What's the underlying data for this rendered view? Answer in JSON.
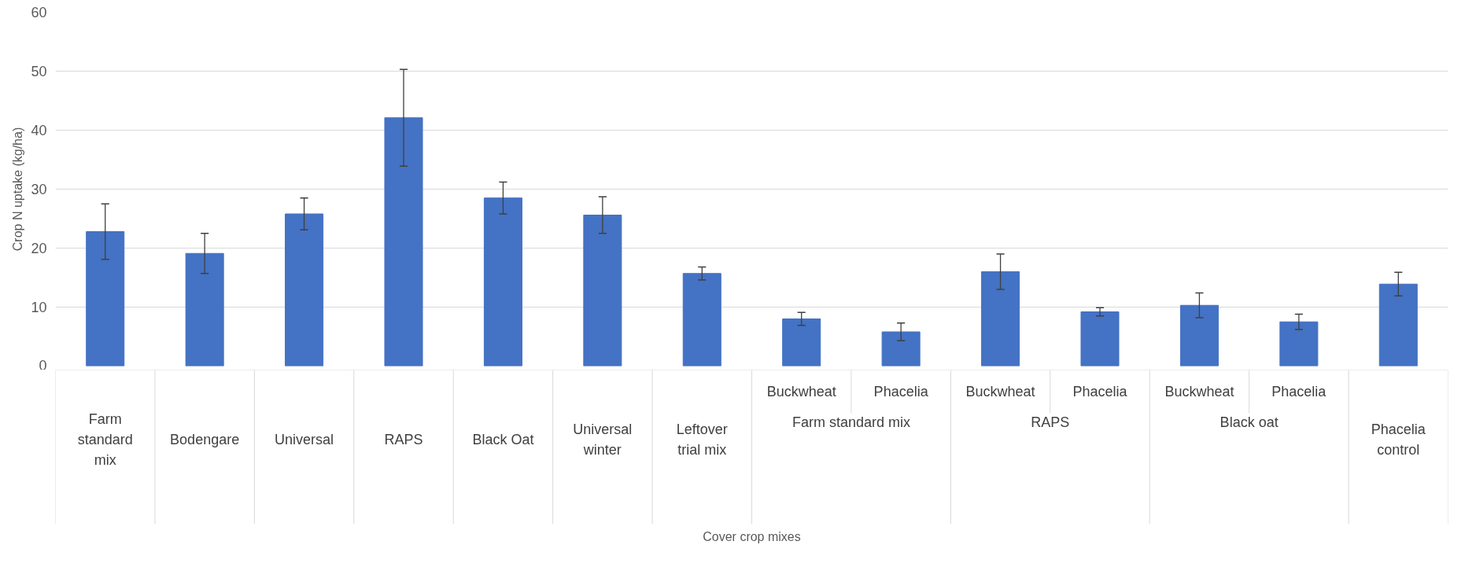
{
  "chart_data": {
    "type": "bar",
    "xlabel": "Cover crop mixes",
    "ylabel": "Crop N uptake (kg/ha)",
    "categories": [
      "Farm standard mix",
      "Bodengare",
      "Universal",
      "RAPS",
      "Black Oat",
      "Universal winter",
      "Leftover trial mix",
      "Buckwheat",
      "Phacelia",
      "Buckwheat",
      "Phacelia",
      "Buckwheat",
      "Phacelia",
      "Phacelia control"
    ],
    "values": [
      22.8,
      19.1,
      25.8,
      42.1,
      28.5,
      25.6,
      15.7,
      8.0,
      5.8,
      16.0,
      9.2,
      10.3,
      7.5,
      13.9
    ],
    "errors": [
      4.7,
      3.4,
      2.7,
      8.2,
      2.7,
      3.1,
      1.1,
      1.1,
      1.5,
      3.0,
      0.7,
      2.1,
      1.3,
      2.0
    ],
    "color": "#4472c4",
    "annotations": [
      "Farm standard mix",
      "RAPS",
      "Black oat"
    ],
    "ylim": [
      0,
      60
    ],
    "yticks": [
      0,
      10,
      20,
      30,
      40,
      50,
      60
    ],
    "grid": "y"
  }
}
